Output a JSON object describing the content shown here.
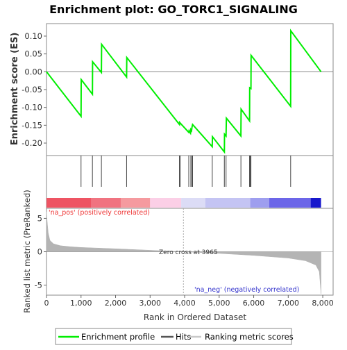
{
  "title": "Enrichment plot: GO_TORC1_SIGNALING",
  "chart_data": [
    {
      "type": "line",
      "panel": "enrichment",
      "ylabel": "Enrichment score (ES)",
      "ylim": [
        -0.235,
        0.135
      ],
      "xlim": [
        0,
        8300
      ],
      "yticks": [
        0.1,
        0.05,
        0.0,
        -0.05,
        -0.1,
        -0.15,
        -0.2
      ],
      "ytick_labels": [
        "0.10",
        "0.05",
        "0.00",
        "-0.05",
        "-0.10",
        "-0.15",
        "-0.20"
      ],
      "grid": false,
      "zero_line": true,
      "color": "#00ee00",
      "series": [
        {
          "name": "Enrichment profile",
          "x": [
            0,
            1000,
            1005,
            1330,
            1335,
            1590,
            1595,
            2320,
            2325,
            3850,
            3855,
            3900,
            4120,
            4130,
            4170,
            4180,
            4200,
            4215,
            4230,
            4800,
            4805,
            5150,
            5155,
            5200,
            5210,
            5630,
            5635,
            5880,
            5885,
            5920,
            5925,
            7070,
            7075,
            7950
          ],
          "y": [
            0.0,
            -0.125,
            -0.022,
            -0.063,
            0.028,
            -0.002,
            0.077,
            -0.015,
            0.04,
            -0.148,
            -0.142,
            -0.147,
            -0.17,
            -0.165,
            -0.172,
            -0.162,
            -0.165,
            -0.155,
            -0.148,
            -0.21,
            -0.182,
            -0.225,
            -0.175,
            -0.18,
            -0.13,
            -0.18,
            -0.105,
            -0.138,
            -0.045,
            -0.047,
            0.046,
            -0.097,
            0.115,
            0.0
          ]
        }
      ]
    },
    {
      "type": "hits",
      "panel": "hits",
      "series": [
        {
          "name": "Hits",
          "x": [
            1000,
            1330,
            1590,
            2320,
            3850,
            3870,
            4120,
            4180,
            4215,
            4230,
            4800,
            5150,
            5200,
            5630,
            5880,
            5900,
            5920,
            7070
          ]
        }
      ]
    },
    {
      "type": "heatmap",
      "panel": "color-bar",
      "segments": [
        {
          "from": 0,
          "to": 1300,
          "color": "#ee5463"
        },
        {
          "from": 1300,
          "to": 2150,
          "color": "#f07380"
        },
        {
          "from": 2150,
          "to": 3000,
          "color": "#f59a9f"
        },
        {
          "from": 3000,
          "to": 3900,
          "color": "#fbcfe6"
        },
        {
          "from": 3900,
          "to": 4600,
          "color": "#dcdcf6"
        },
        {
          "from": 4600,
          "to": 5900,
          "color": "#c4c4f3"
        },
        {
          "from": 5900,
          "to": 6450,
          "color": "#9e9eef"
        },
        {
          "from": 6450,
          "to": 7650,
          "color": "#6c66e8"
        },
        {
          "from": 7650,
          "to": 7950,
          "color": "#1818cc"
        }
      ]
    },
    {
      "type": "area",
      "panel": "ranked-metric",
      "ylabel": "Ranked list metric (PreRanked)",
      "xlabel": "Rank in Ordered Dataset",
      "ylim": [
        -6.5,
        6.5
      ],
      "xlim": [
        0,
        8300
      ],
      "yticks": [
        5,
        0,
        -5
      ],
      "ytick_labels": [
        "5",
        "0",
        "-5"
      ],
      "xticks": [
        0,
        1000,
        2000,
        3000,
        4000,
        5000,
        6000,
        7000,
        8000
      ],
      "xtick_labels": [
        "0",
        "1,000",
        "2,000",
        "3,000",
        "4,000",
        "5,000",
        "6,000",
        "7,000",
        "8,000"
      ],
      "fill_color": "#b4b4b4",
      "series": [
        {
          "name": "Ranking metric scores",
          "x": [
            0,
            20,
            50,
            100,
            200,
            400,
            700,
            1000,
            2000,
            3000,
            3965,
            5000,
            6000,
            7000,
            7500,
            7800,
            7900,
            7950
          ],
          "y": [
            6.0,
            4.5,
            2.8,
            1.7,
            1.2,
            0.9,
            0.75,
            0.65,
            0.45,
            0.22,
            0.0,
            -0.25,
            -0.55,
            -0.95,
            -1.35,
            -2.0,
            -3.0,
            -6.3
          ]
        }
      ],
      "annotations": {
        "zero_cross": "Zero cross at 3965",
        "zero_cross_x": 3965,
        "pos_label": "'na_pos' (positively correlated)",
        "neg_label": "'na_neg' (negatively correlated)"
      }
    }
  ],
  "legend": {
    "placement": "bottom",
    "items": [
      {
        "label": "Enrichment profile",
        "color": "#00ee00"
      },
      {
        "label": "Hits",
        "color": "#555555"
      },
      {
        "label": "Ranking metric scores",
        "color": "#c8c8c8"
      }
    ]
  }
}
